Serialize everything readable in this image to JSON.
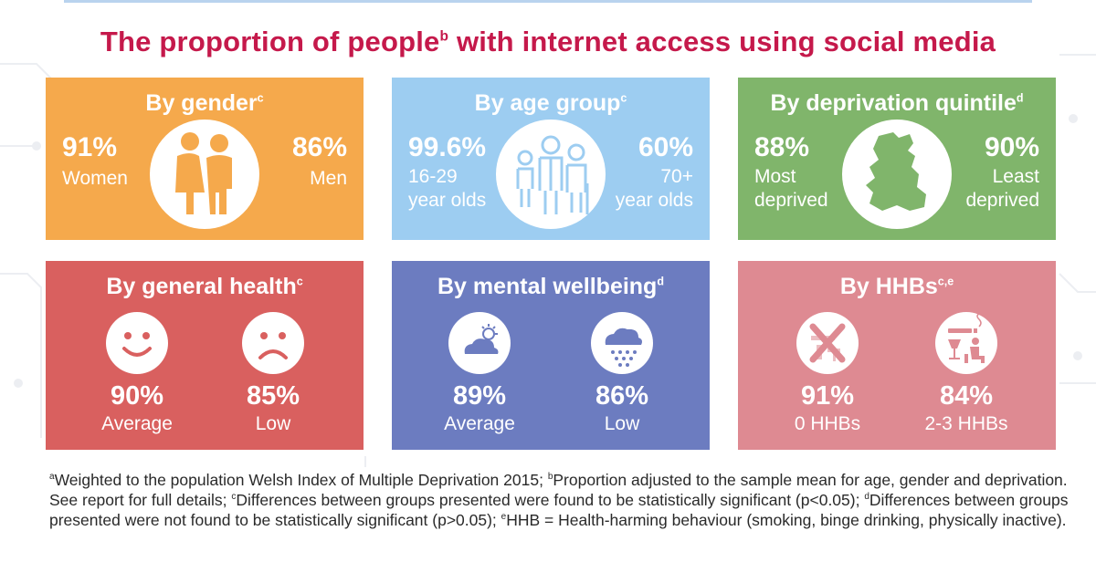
{
  "title": {
    "text": "The proportion of people",
    "sup": "b",
    "rest": " with internet access using social media"
  },
  "colors": {
    "title": "#c5194b",
    "gender": "#f5a94c",
    "age": "#9dcdf1",
    "deprivation": "#80b56b",
    "health": "#d9605f",
    "mental": "#6c7cc0",
    "hhb": "#de8a92"
  },
  "gender": {
    "title": "By gender",
    "sup": "c",
    "icon": "women-men-icon",
    "left": {
      "value": "91%",
      "label": "Women"
    },
    "right": {
      "value": "86%",
      "label": "Men"
    }
  },
  "age": {
    "title": "By age group",
    "sup": "c",
    "icon": "age-group-people-icon",
    "left": {
      "value": "99.6%",
      "label1": "16-29",
      "label2": "year olds"
    },
    "right": {
      "value": "60%",
      "label1": "70+",
      "label2": "year olds"
    }
  },
  "deprivation": {
    "title": "By deprivation quintile",
    "sup": "d",
    "icon": "wales-map-icon",
    "left": {
      "value": "88%",
      "label1": "Most",
      "label2": "deprived"
    },
    "right": {
      "value": "90%",
      "label1": "Least",
      "label2": "deprived"
    }
  },
  "health": {
    "title": "By general health",
    "sup": "c",
    "left": {
      "icon": "happy-face-icon",
      "value": "90%",
      "label": "Average"
    },
    "right": {
      "icon": "sad-face-icon",
      "value": "85%",
      "label": "Low"
    }
  },
  "mental": {
    "title": "By mental wellbeing",
    "sup": "d",
    "left": {
      "icon": "cloud-sun-icon",
      "value": "89%",
      "label": "Average"
    },
    "right": {
      "icon": "rain-cloud-icon",
      "value": "86%",
      "label": "Low"
    }
  },
  "hhb": {
    "title": "By HHBs",
    "sup": "c,e",
    "left": {
      "icon": "no-smoking-drinking-icon",
      "value": "91%",
      "label": "0 HHBs"
    },
    "right": {
      "icon": "smoking-drinking-sitting-icon",
      "value": "84%",
      "label": "2-3 HHBs"
    }
  },
  "footnotes": {
    "a_sup": "a",
    "a": "Weighted to the population Welsh Index of Multiple Deprivation 2015; ",
    "b_sup": "b",
    "b": "Proportion adjusted to the sample mean for age, gender and deprivation. See report for full details; ",
    "c_sup": "c",
    "c": "Differences between groups presented were found to be statistically significant (p<0.05); ",
    "d_sup": "d",
    "d": "Differences between groups presented were not found to be statistically significant (p>0.05); ",
    "e_sup": "e",
    "e": "HHB = Health-harming behaviour (smoking, binge drinking, physically inactive)."
  }
}
